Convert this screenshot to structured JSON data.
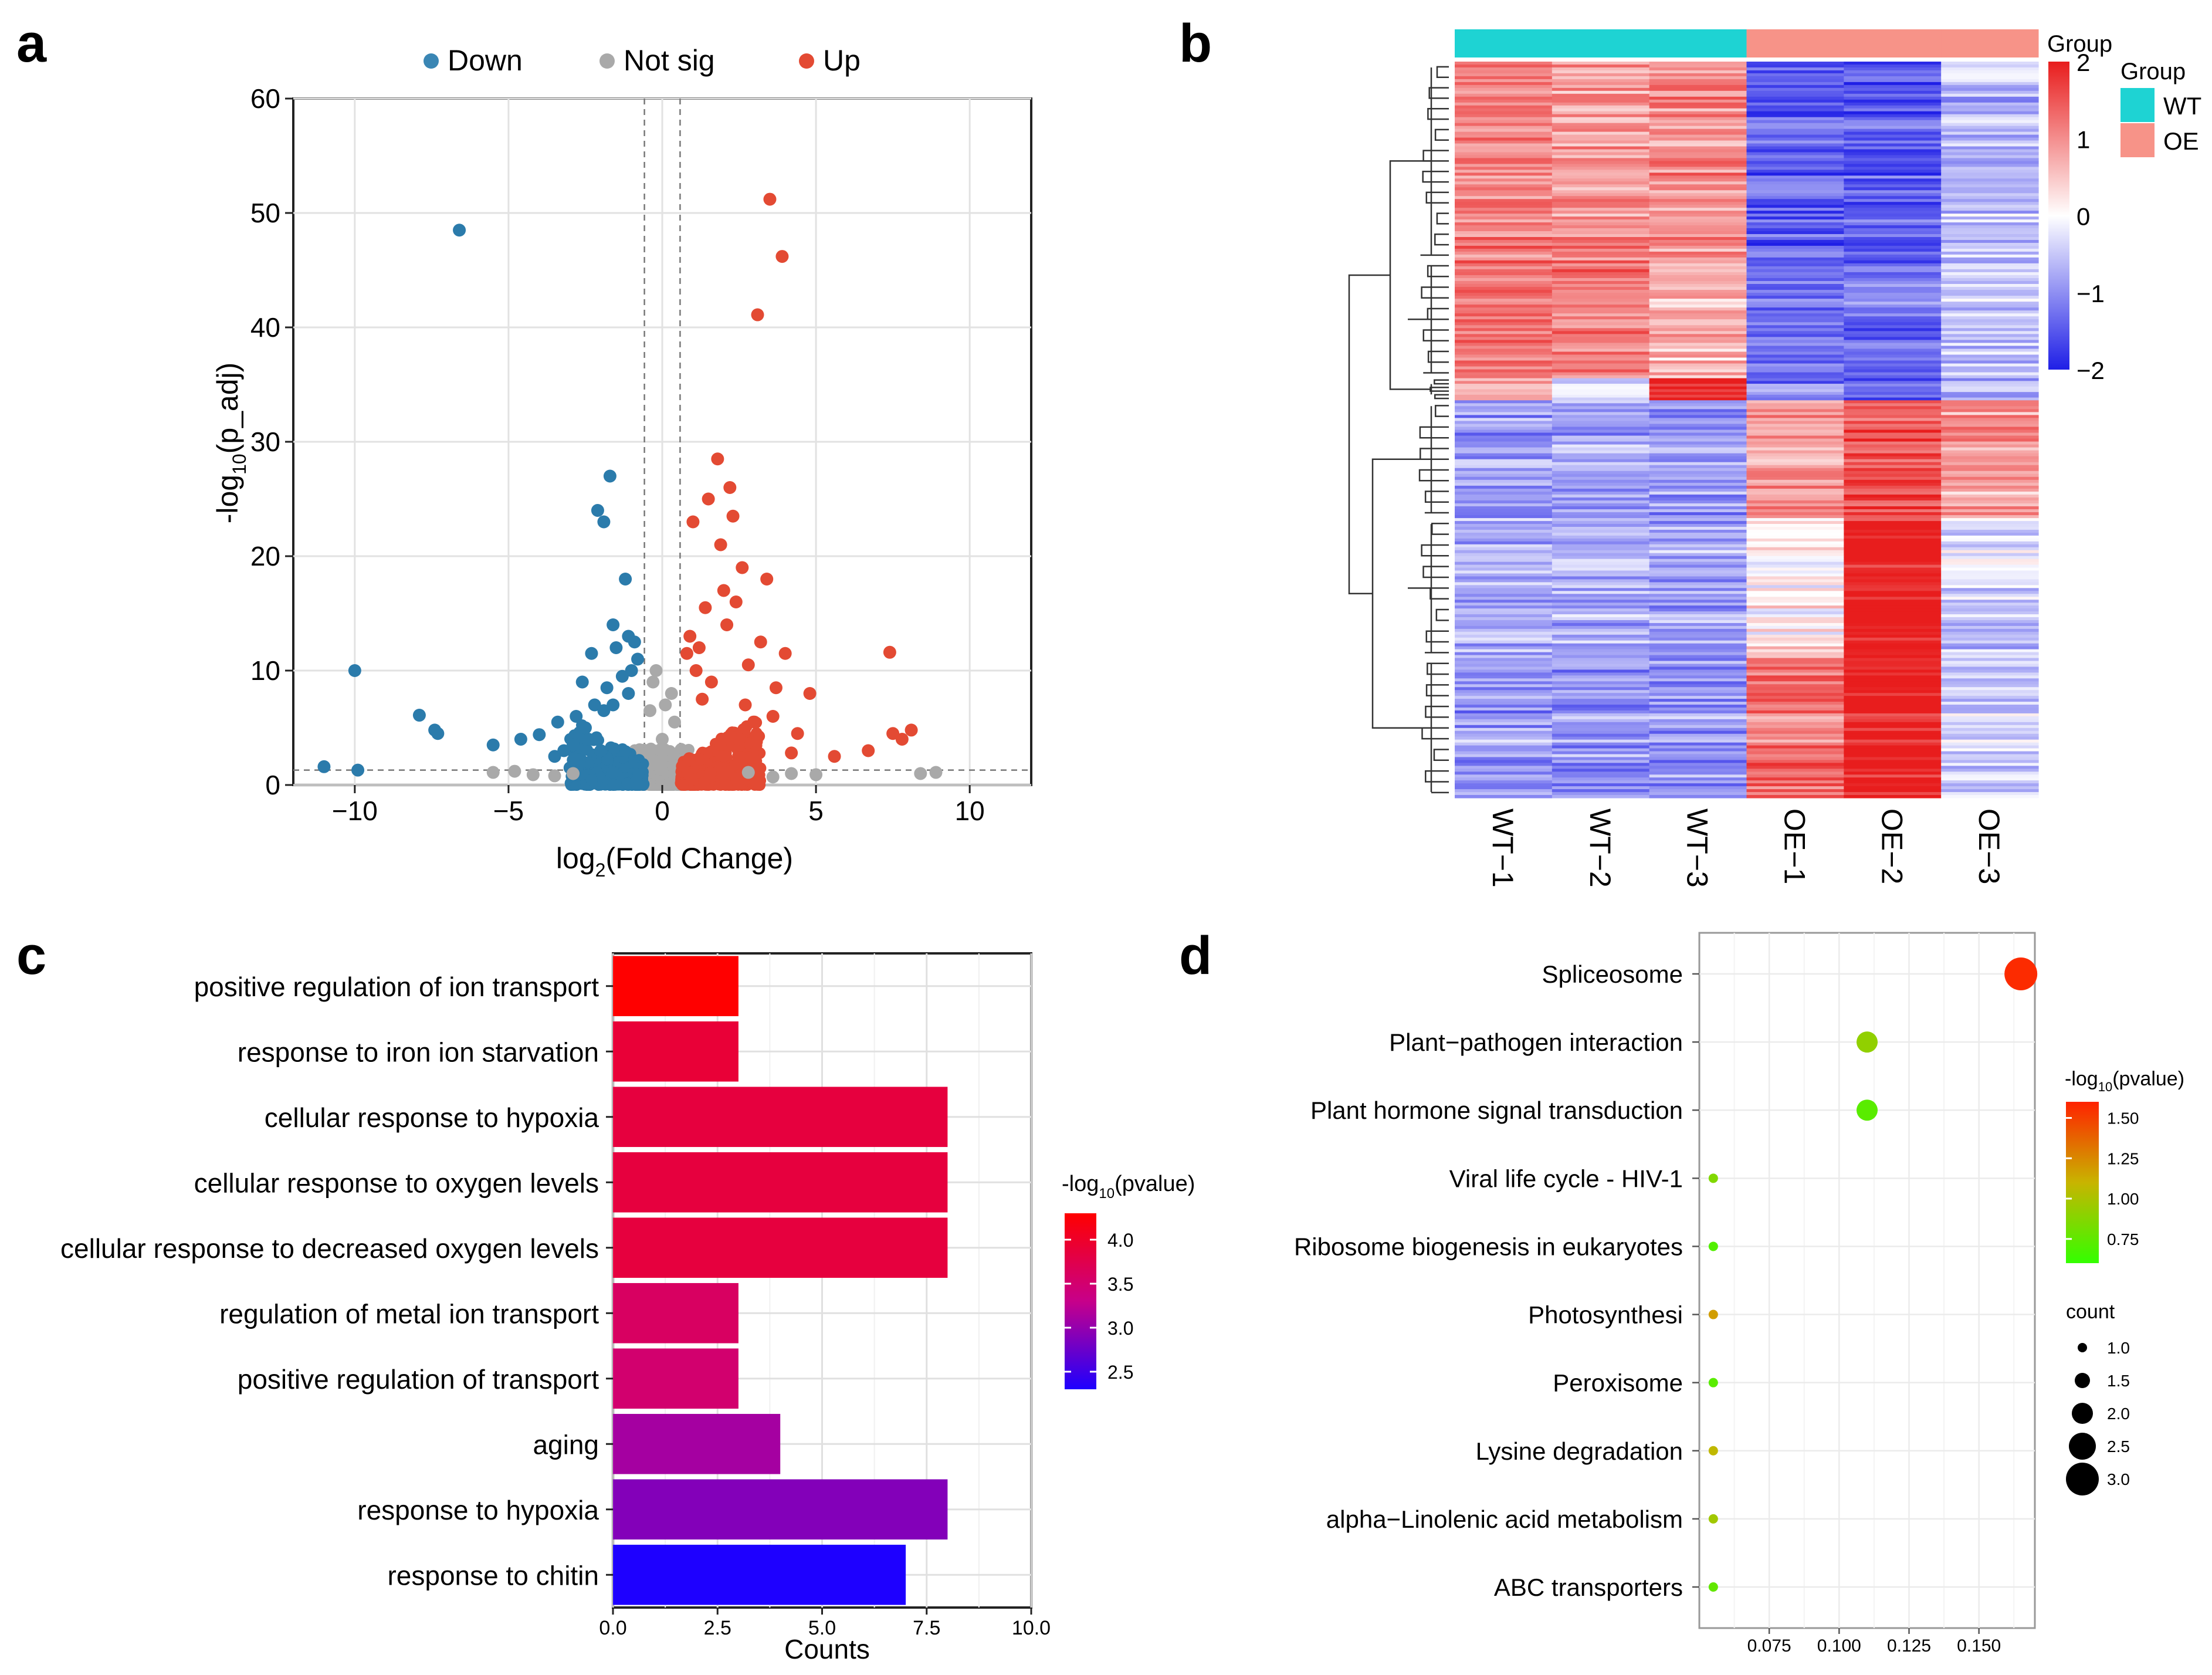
{
  "panel_letters": [
    "a",
    "b",
    "c",
    "d"
  ],
  "chart_data": [
    {
      "panel": "a",
      "type": "scatter",
      "title": "",
      "xlabel_main": "log",
      "xlabel_sub": "2",
      "xlabel_rest": "(Fold Change)",
      "ylabel_pre": "-log",
      "ylabel_sub": "10",
      "ylabel_rest": "(p_adj)",
      "xlim": [
        -12,
        12
      ],
      "ylim": [
        0,
        60
      ],
      "x_ticks": [
        -10,
        -5,
        0,
        5,
        10
      ],
      "x_tick_labels": [
        "−10",
        "−5",
        "0",
        "5",
        "10"
      ],
      "y_ticks": [
        0,
        10,
        20,
        30,
        40,
        50,
        60
      ],
      "y_tick_labels": [
        "0",
        "10",
        "20",
        "30",
        "40",
        "50",
        "60"
      ],
      "thresholds": {
        "fold_change": [
          -0.58,
          0.58
        ],
        "p_adj_line": 1.3
      },
      "legend_position": "top",
      "legend": [
        {
          "label": "Down",
          "color": "#3a86b4"
        },
        {
          "label": "Not sig",
          "color": "#a9a9a9"
        },
        {
          "label": "Up",
          "color": "#e34a33"
        }
      ],
      "series": [
        {
          "name": "Down",
          "color": "#2b7bab",
          "points": [
            [
              -6.6,
              48.5
            ],
            [
              -10,
              10
            ],
            [
              -11,
              1.6
            ],
            [
              -9.9,
              1.3
            ],
            [
              -7.9,
              6.1
            ],
            [
              -7.4,
              4.8
            ],
            [
              -7.3,
              4.5
            ],
            [
              -5.5,
              3.5
            ],
            [
              -4.6,
              4
            ],
            [
              -4,
              4.4
            ],
            [
              -3.5,
              2.5
            ],
            [
              -3.2,
              3
            ],
            [
              -2.9,
              3.5
            ],
            [
              -2.6,
              9
            ],
            [
              -2.3,
              11.5
            ],
            [
              -2.1,
              24
            ],
            [
              -1.9,
              23
            ],
            [
              -1.7,
              27
            ],
            [
              -1.6,
              14
            ],
            [
              -1.2,
              18
            ],
            [
              -1.1,
              13
            ],
            [
              -0.9,
              12.5
            ],
            [
              -1.5,
              12
            ],
            [
              -2.2,
              7
            ],
            [
              -1.8,
              8.5
            ],
            [
              -1.3,
              9.5
            ],
            [
              -2.8,
              6
            ],
            [
              -3.4,
              5.5
            ],
            [
              -2.5,
              5
            ],
            [
              -1.6,
              7
            ],
            [
              -0.8,
              11
            ],
            [
              -1,
              10
            ],
            [
              -1.9,
              6.5
            ],
            [
              -2.4,
              4
            ],
            [
              -1.1,
              8
            ],
            [
              -3,
              1.5
            ],
            [
              -2.7,
              2.2
            ],
            [
              -2,
              3
            ]
          ]
        },
        {
          "name": "Up",
          "color": "#e34a33",
          "points": [
            [
              3.5,
              51.2
            ],
            [
              3.9,
              46.2
            ],
            [
              3.1,
              41.1
            ],
            [
              1.8,
              28.5
            ],
            [
              2.2,
              26
            ],
            [
              1.5,
              25
            ],
            [
              2.3,
              23.5
            ],
            [
              1,
              23
            ],
            [
              1.9,
              21
            ],
            [
              2.6,
              19
            ],
            [
              3.4,
              18
            ],
            [
              2,
              17
            ],
            [
              2.4,
              16
            ],
            [
              1.4,
              15.5
            ],
            [
              3.2,
              12.5
            ],
            [
              4,
              11.5
            ],
            [
              2.1,
              14
            ],
            [
              7.4,
              11.6
            ],
            [
              4.8,
              8
            ],
            [
              3.7,
              8.5
            ],
            [
              6.7,
              3
            ],
            [
              7.5,
              4.5
            ],
            [
              7.8,
              4
            ],
            [
              8.1,
              4.8
            ],
            [
              5.6,
              2.5
            ],
            [
              4.2,
              2.8
            ],
            [
              1.2,
              12
            ],
            [
              0.9,
              13
            ],
            [
              2.8,
              10.5
            ],
            [
              3.6,
              6
            ],
            [
              2.7,
              7
            ],
            [
              1.6,
              9
            ],
            [
              3,
              5.5
            ],
            [
              2.5,
              4
            ],
            [
              4.4,
              4.5
            ],
            [
              1.1,
              10
            ],
            [
              0.8,
              11.5
            ],
            [
              1.3,
              7.5
            ]
          ]
        },
        {
          "name": "Not sig",
          "color": "#a9a9a9",
          "points": [
            [
              8.9,
              1.1
            ],
            [
              8.4,
              1
            ],
            [
              -5.5,
              1.1
            ],
            [
              -4.8,
              1.2
            ],
            [
              -4.2,
              0.9
            ],
            [
              -3.5,
              0.8
            ],
            [
              5,
              0.9
            ],
            [
              4.2,
              1
            ],
            [
              3.6,
              0.7
            ],
            [
              -2.9,
              1
            ],
            [
              2.8,
              1.1
            ],
            [
              -0.3,
              9
            ],
            [
              0.3,
              8
            ],
            [
              -0.2,
              10
            ],
            [
              0.1,
              7
            ],
            [
              -0.4,
              6.5
            ],
            [
              0.4,
              5.5
            ],
            [
              0,
              4
            ]
          ]
        }
      ]
    },
    {
      "panel": "b",
      "type": "heatmap",
      "columns": [
        "WT−1",
        "WT−2",
        "WT−3",
        "OE−1",
        "OE−2",
        "OE−3"
      ],
      "column_groups": [
        "WT",
        "WT",
        "WT",
        "OE",
        "OE",
        "OE"
      ],
      "group_annotation_title": "Group",
      "color_legend_title": "Group",
      "color_scale": {
        "min": -2,
        "max": 2,
        "low": "#1f1fe6",
        "mid": "#ffffff",
        "high": "#e81d1d",
        "ticks": [
          2,
          1,
          0,
          -1,
          -2
        ],
        "tick_labels": [
          "2",
          "1",
          "0",
          "−1",
          "−2"
        ]
      },
      "group_legend_title": "Group",
      "group_legend": [
        {
          "label": "WT",
          "color": "#1ed3d3"
        },
        {
          "label": "OE",
          "color": "#f79388"
        }
      ],
      "row_clusters": [
        {
          "fraction": 0.27,
          "means": [
            1.1,
            0.9,
            1.0,
            -1.4,
            -1.5,
            -0.6
          ]
        },
        {
          "fraction": 0.16,
          "means": [
            1.2,
            1.2,
            0.7,
            -1.3,
            -1.3,
            -0.5
          ]
        },
        {
          "fraction": 0.03,
          "means": [
            0.6,
            -0.2,
            1.9,
            -1.1,
            -1.2,
            -0.6
          ]
        },
        {
          "fraction": 0.16,
          "means": [
            -0.9,
            -0.8,
            -0.9,
            0.9,
            1.6,
            0.9
          ]
        },
        {
          "fraction": 0.19,
          "means": [
            -0.7,
            -0.7,
            -0.8,
            0.1,
            2.0,
            -0.4
          ]
        },
        {
          "fraction": 0.19,
          "means": [
            -0.9,
            -0.9,
            -0.9,
            1.2,
            2.0,
            -0.3
          ]
        }
      ]
    },
    {
      "panel": "c",
      "type": "bar",
      "orientation": "horizontal",
      "categories": [
        "positive regulation of ion transport",
        "response to iron ion starvation",
        "cellular response to hypoxia",
        "cellular response to oxygen levels",
        "cellular response to decreased oxygen levels",
        "regulation of metal ion transport",
        "positive regulation of transport",
        "aging",
        "response to hypoxia",
        "response to chitin"
      ],
      "values": [
        3,
        3,
        8,
        8,
        8,
        3,
        3,
        4,
        8,
        7
      ],
      "color_values": [
        4.3,
        3.9,
        3.85,
        3.85,
        3.85,
        3.6,
        3.5,
        3.1,
        2.9,
        2.3
      ],
      "xlabel": "Counts",
      "xlim": [
        0,
        10
      ],
      "x_ticks": [
        0,
        2.5,
        5,
        7.5,
        10
      ],
      "x_tick_labels": [
        "0.0",
        "2.5",
        "5.0",
        "7.5",
        "10.0"
      ],
      "legend_title_pre": "-log",
      "legend_title_sub": "10",
      "legend_title_rest": "(pvalue)",
      "color_scale": {
        "min": 2.3,
        "max": 4.3,
        "low": "#1e00ff",
        "mid": "#c7008a",
        "high": "#ff0000",
        "ticks": [
          4.0,
          3.5,
          3.0,
          2.5
        ],
        "tick_labels": [
          "4.0",
          "3.5",
          "3.0",
          "2.5"
        ]
      }
    },
    {
      "panel": "d",
      "type": "scatter",
      "subtype": "dotplot",
      "categories": [
        "Spliceosome",
        "Plant−pathogen interaction",
        "Plant hormone signal transduction",
        "Viral life cycle - HIV-1",
        "Ribosome biogenesis in eukaryotes",
        "Photosynthesi",
        "Peroxisome",
        "Lysine degradation",
        "alpha−Linolenic acid metabolism",
        "ABC transporters"
      ],
      "x_values": [
        0.165,
        0.11,
        0.11,
        0.055,
        0.055,
        0.055,
        0.055,
        0.055,
        0.055,
        0.055
      ],
      "counts": [
        3,
        2,
        2,
        1,
        1,
        1,
        1,
        1,
        1,
        1
      ],
      "color_values": [
        1.52,
        0.9,
        0.72,
        0.85,
        0.7,
        1.15,
        0.72,
        1.05,
        0.95,
        0.75
      ],
      "xlim": [
        0.05,
        0.17
      ],
      "x_ticks": [
        0.075,
        0.1,
        0.125,
        0.15
      ],
      "x_tick_labels": [
        "0.075",
        "0.100",
        "0.125",
        "0.150"
      ],
      "color_legend_title_pre": "-log",
      "color_legend_title_sub": "10",
      "color_legend_title_rest": "(pvalue)",
      "color_scale": {
        "min": 0.6,
        "max": 1.55,
        "low": "#33ff00",
        "high": "#ff2200",
        "ticks": [
          1.5,
          1.25,
          1.0,
          0.75
        ],
        "tick_labels": [
          "1.50",
          "1.25",
          "1.00",
          "0.75"
        ]
      },
      "size_legend_title": "count",
      "size_legend": [
        1.0,
        1.5,
        2.0,
        2.5,
        3.0
      ],
      "size_legend_labels": [
        "1.0",
        "1.5",
        "2.0",
        "2.5",
        "3.0"
      ]
    }
  ]
}
